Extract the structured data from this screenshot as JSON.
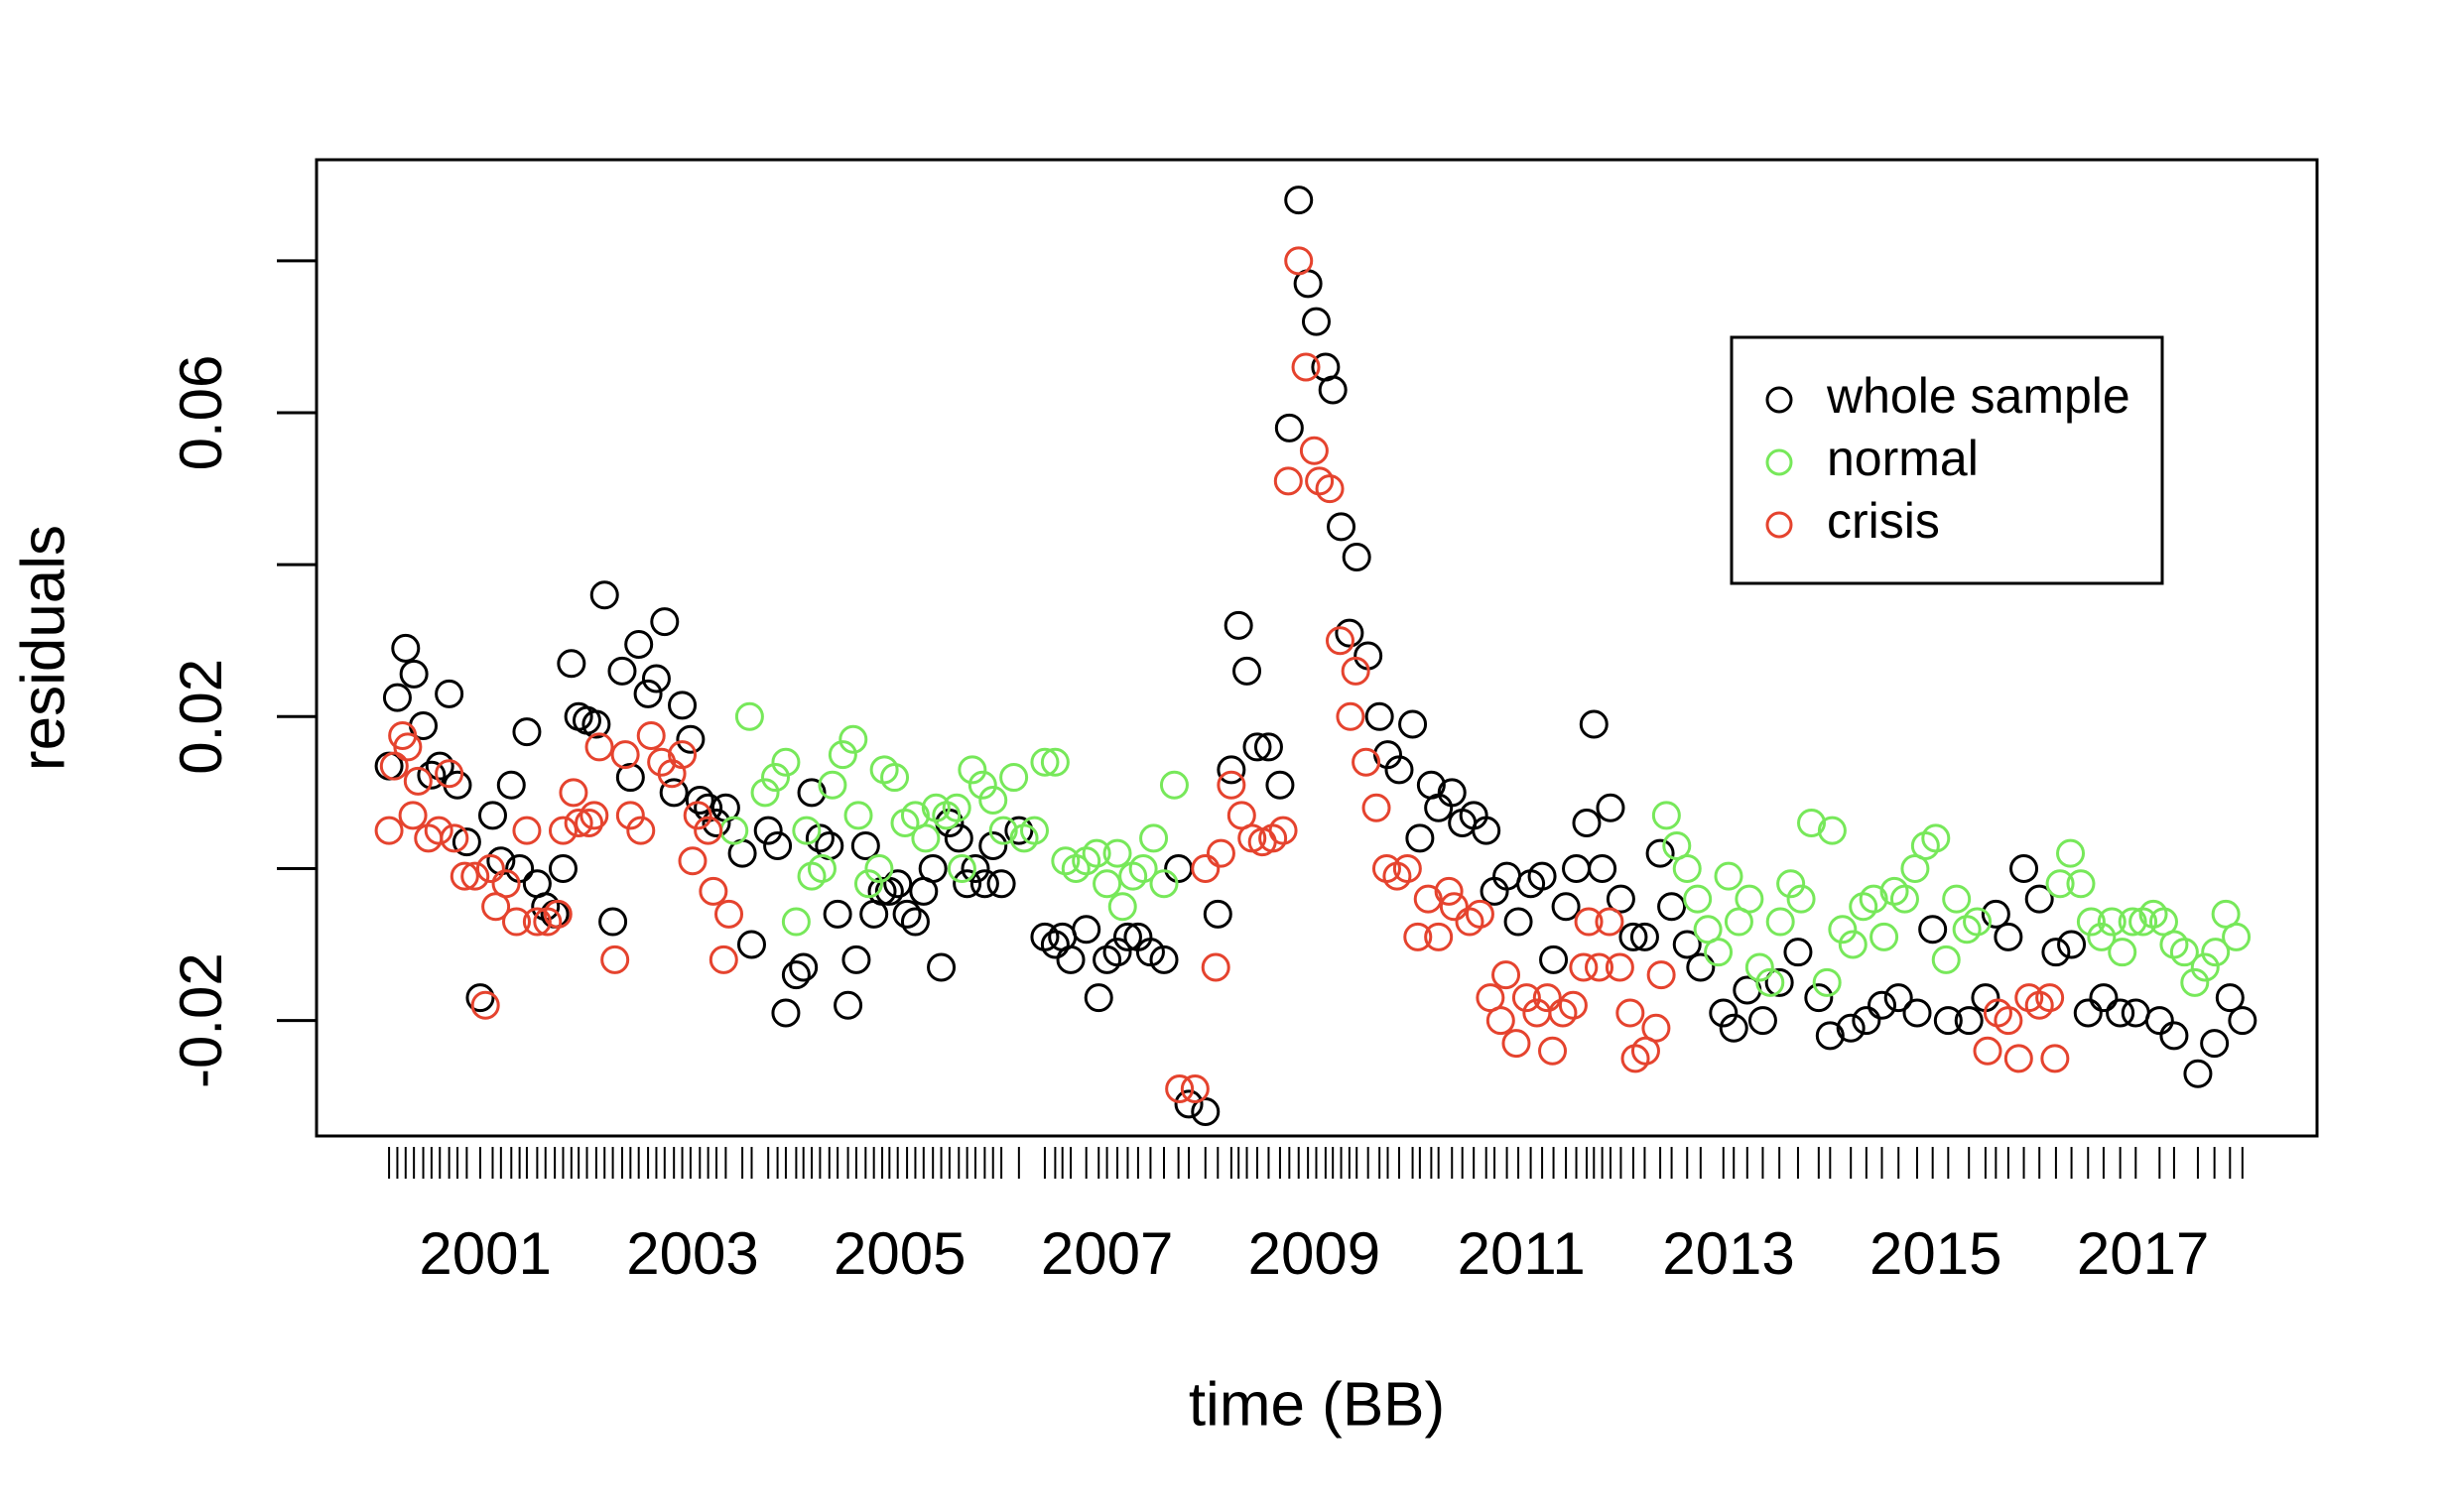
{
  "chart_data": {
    "type": "scatter",
    "x_label": "time (BB)",
    "y_label": "residuals",
    "xlim": [
      1999.37,
      2018.68
    ],
    "ylim": [
      -0.0352,
      0.0933
    ],
    "xticks": [
      2001,
      2003,
      2005,
      2007,
      2009,
      2011,
      2013,
      2015,
      2017
    ],
    "yticks": [
      -0.02,
      0.02,
      0.06
    ],
    "yticks_unlabeled": [
      0,
      0.04,
      0.08
    ],
    "rug": true,
    "grid": false,
    "legend": "topright",
    "series": [
      {
        "name": "whole sample",
        "color": "#000000",
        "x": [
          2000.07,
          2000.15,
          2000.23,
          2000.31,
          2000.4,
          2000.48,
          2000.56,
          2000.65,
          2000.73,
          2000.82,
          2000.95,
          2001.07,
          2001.15,
          2001.25,
          2001.33,
          2001.4,
          2001.5,
          2001.58,
          2001.67,
          2001.75,
          2001.83,
          2001.9,
          2001.98,
          2002.07,
          2002.15,
          2002.23,
          2002.32,
          2002.4,
          2002.48,
          2002.57,
          2002.65,
          2002.73,
          2002.82,
          2002.9,
          2002.98,
          2003.07,
          2003.15,
          2003.23,
          2003.32,
          2003.48,
          2003.57,
          2003.73,
          2003.82,
          2003.9,
          2004.0,
          2004.07,
          2004.15,
          2004.23,
          2004.32,
          2004.4,
          2004.5,
          2004.58,
          2004.67,
          2004.75,
          2004.83,
          2004.9,
          2004.98,
          2005.07,
          2005.15,
          2005.23,
          2005.32,
          2005.4,
          2005.48,
          2005.57,
          2005.65,
          2005.73,
          2005.82,
          2005.9,
          2005.98,
          2006.15,
          2006.4,
          2006.5,
          2006.57,
          2006.65,
          2006.8,
          2006.92,
          2007.0,
          2007.1,
          2007.2,
          2007.3,
          2007.42,
          2007.55,
          2007.69,
          2007.79,
          2007.95,
          2008.07,
          2008.2,
          2008.27,
          2008.35,
          2008.45,
          2008.56,
          2008.67,
          2008.76,
          2008.85,
          2008.94,
          2009.02,
          2009.11,
          2009.18,
          2009.26,
          2009.34,
          2009.41,
          2009.52,
          2009.63,
          2009.71,
          2009.82,
          2009.95,
          2010.02,
          2010.13,
          2010.2,
          2010.33,
          2010.43,
          2010.54,
          2010.66,
          2010.74,
          2010.86,
          2010.97,
          2011.09,
          2011.2,
          2011.31,
          2011.43,
          2011.53,
          2011.63,
          2011.7,
          2011.78,
          2011.86,
          2011.96,
          2012.08,
          2012.19,
          2012.34,
          2012.45,
          2012.6,
          2012.73,
          2012.95,
          2013.05,
          2013.18,
          2013.33,
          2013.49,
          2013.67,
          2013.87,
          2013.98,
          2014.18,
          2014.33,
          2014.48,
          2014.64,
          2014.82,
          2014.97,
          2015.12,
          2015.32,
          2015.48,
          2015.58,
          2015.7,
          2015.85,
          2016.0,
          2016.16,
          2016.31,
          2016.47,
          2016.62,
          2016.78,
          2016.93,
          2017.16,
          2017.3,
          2017.53,
          2017.69,
          2017.84,
          2017.96
        ],
        "values": [
          0.0135,
          0.0225,
          0.029,
          0.0256,
          0.0188,
          0.0123,
          0.0135,
          0.023,
          0.011,
          0.0035,
          -0.017,
          0.007,
          0.001,
          0.011,
          0.0,
          0.018,
          -0.002,
          -0.005,
          -0.006,
          0.0,
          0.027,
          0.02,
          0.0195,
          0.019,
          0.036,
          -0.007,
          0.026,
          0.012,
          0.0295,
          0.023,
          0.025,
          0.0325,
          0.01,
          0.0215,
          0.017,
          0.009,
          0.008,
          0.006,
          0.008,
          0.002,
          -0.01,
          0.005,
          0.003,
          -0.019,
          -0.014,
          -0.013,
          0.01,
          0.004,
          0.003,
          -0.006,
          -0.018,
          -0.012,
          0.003,
          -0.006,
          -0.003,
          -0.003,
          -0.002,
          -0.006,
          -0.007,
          -0.003,
          0.0,
          -0.013,
          0.006,
          0.004,
          -0.002,
          0.0,
          -0.002,
          0.003,
          -0.002,
          0.005,
          -0.009,
          -0.01,
          -0.009,
          -0.012,
          -0.008,
          -0.017,
          -0.012,
          -0.011,
          -0.009,
          -0.009,
          -0.011,
          -0.012,
          0.0,
          -0.031,
          -0.032,
          -0.006,
          0.013,
          0.032,
          0.026,
          0.016,
          0.016,
          0.011,
          0.058,
          0.088,
          0.077,
          0.072,
          0.066,
          0.063,
          0.045,
          0.031,
          0.041,
          0.028,
          0.02,
          0.015,
          0.013,
          0.019,
          0.004,
          0.011,
          0.008,
          0.01,
          0.006,
          0.007,
          0.005,
          -0.003,
          -0.001,
          -0.007,
          -0.002,
          -0.001,
          -0.012,
          -0.005,
          0.0,
          0.006,
          0.019,
          0.0,
          0.008,
          -0.004,
          -0.009,
          -0.009,
          0.002,
          -0.005,
          -0.01,
          -0.013,
          -0.019,
          -0.021,
          -0.016,
          -0.02,
          -0.015,
          -0.011,
          -0.017,
          -0.022,
          -0.021,
          -0.02,
          -0.018,
          -0.017,
          -0.019,
          -0.008,
          -0.02,
          -0.02,
          -0.017,
          -0.006,
          -0.009,
          0.0,
          -0.004,
          -0.011,
          -0.01,
          -0.019,
          -0.017,
          -0.019,
          -0.019,
          -0.02,
          -0.022,
          -0.027,
          -0.023,
          -0.017,
          -0.02
        ]
      },
      {
        "name": "normal",
        "color": "#77e85a",
        "x": [
          2003.4,
          2003.55,
          2003.7,
          2003.8,
          2003.9,
          2004.0,
          2004.1,
          2004.15,
          2004.25,
          2004.35,
          2004.45,
          2004.55,
          2004.6,
          2004.7,
          2004.8,
          2004.85,
          2004.95,
          2005.05,
          2005.15,
          2005.25,
          2005.35,
          2005.45,
          2005.55,
          2005.6,
          2005.7,
          2005.8,
          2005.9,
          2006.0,
          2006.1,
          2006.2,
          2006.3,
          2006.4,
          2006.5,
          2006.6,
          2006.7,
          2006.8,
          2006.9,
          2007.0,
          2007.1,
          2007.15,
          2007.25,
          2007.35,
          2007.45,
          2007.55,
          2007.65,
          2012.4,
          2012.5,
          2012.6,
          2012.7,
          2012.8,
          2012.9,
          2013.0,
          2013.1,
          2013.2,
          2013.3,
          2013.4,
          2013.5,
          2013.6,
          2013.7,
          2013.8,
          2013.95,
          2014.0,
          2014.1,
          2014.2,
          2014.3,
          2014.4,
          2014.5,
          2014.6,
          2014.7,
          2014.8,
          2014.9,
          2015.0,
          2015.1,
          2015.2,
          2015.3,
          2015.4,
          2016.2,
          2016.3,
          2016.4,
          2016.5,
          2016.6,
          2016.7,
          2016.8,
          2016.9,
          2017.0,
          2017.1,
          2017.2,
          2017.3,
          2017.4,
          2017.5,
          2017.6,
          2017.7,
          2017.8,
          2017.9
        ],
        "values": [
          0.005,
          0.02,
          0.01,
          0.012,
          0.014,
          -0.007,
          0.005,
          -0.001,
          0.0,
          0.011,
          0.015,
          0.017,
          0.007,
          -0.002,
          0.0,
          0.013,
          0.012,
          0.006,
          0.007,
          0.004,
          0.008,
          0.007,
          0.008,
          0.0,
          0.013,
          0.011,
          0.009,
          0.005,
          0.012,
          0.004,
          0.005,
          0.014,
          0.014,
          0.001,
          0.0,
          0.001,
          0.002,
          -0.002,
          0.002,
          -0.005,
          -0.001,
          0.0,
          0.004,
          -0.002,
          0.011,
          0.007,
          0.003,
          0.0,
          -0.004,
          -0.008,
          -0.011,
          -0.001,
          -0.007,
          -0.004,
          -0.013,
          -0.015,
          -0.007,
          -0.002,
          -0.004,
          0.006,
          -0.015,
          0.005,
          -0.008,
          -0.01,
          -0.005,
          -0.004,
          -0.009,
          -0.003,
          -0.004,
          0.0,
          0.003,
          0.004,
          -0.012,
          -0.004,
          -0.008,
          -0.007,
          -0.002,
          0.002,
          -0.002,
          -0.007,
          -0.009,
          -0.007,
          -0.011,
          -0.007,
          -0.007,
          -0.006,
          -0.007,
          -0.01,
          -0.011,
          -0.015,
          -0.013,
          -0.011,
          -0.006,
          -0.009
        ]
      },
      {
        "name": "crisis",
        "color": "#e5432e",
        "x": [
          2000.07,
          2000.12,
          2000.2,
          2000.25,
          2000.3,
          2000.35,
          2000.45,
          2000.55,
          2000.65,
          2000.7,
          2000.8,
          2000.9,
          2001.0,
          2001.05,
          2001.1,
          2001.2,
          2001.3,
          2001.4,
          2001.5,
          2001.6,
          2001.7,
          2001.75,
          2001.85,
          2001.9,
          2002.0,
          2002.05,
          2002.1,
          2002.25,
          2002.35,
          2002.4,
          2002.5,
          2002.6,
          2002.7,
          2002.8,
          2002.9,
          2003.0,
          2003.05,
          2003.15,
          2003.2,
          2003.3,
          2003.35,
          2007.7,
          2007.85,
          2007.95,
          2008.05,
          2008.1,
          2008.2,
          2008.3,
          2008.4,
          2008.5,
          2008.6,
          2008.7,
          2008.75,
          2008.85,
          2008.92,
          2009.0,
          2009.05,
          2009.15,
          2009.25,
          2009.35,
          2009.4,
          2009.5,
          2009.6,
          2009.7,
          2009.8,
          2009.9,
          2010.0,
          2010.1,
          2010.2,
          2010.3,
          2010.35,
          2010.5,
          2010.6,
          2010.7,
          2010.8,
          2010.85,
          2010.95,
          2011.05,
          2011.15,
          2011.25,
          2011.3,
          2011.4,
          2011.5,
          2011.6,
          2011.65,
          2011.75,
          2011.85,
          2011.95,
          2012.05,
          2012.1,
          2012.2,
          2012.3,
          2012.35,
          2015.5,
          2015.6,
          2015.7,
          2015.8,
          2015.9,
          2016.0,
          2016.1,
          2016.15
        ],
        "values": [
          0.005,
          0.0135,
          0.0175,
          0.016,
          0.007,
          0.0115,
          0.004,
          0.005,
          0.0125,
          0.004,
          -0.001,
          -0.001,
          -0.018,
          0.0,
          -0.005,
          -0.002,
          -0.007,
          0.005,
          -0.007,
          -0.007,
          -0.006,
          0.005,
          0.01,
          0.006,
          0.006,
          0.007,
          0.016,
          -0.012,
          0.015,
          0.007,
          0.005,
          0.0175,
          0.014,
          0.0125,
          0.015,
          0.001,
          0.007,
          0.005,
          -0.003,
          -0.012,
          -0.006,
          -0.029,
          -0.029,
          0.0,
          -0.013,
          0.002,
          0.011,
          0.007,
          0.004,
          0.0035,
          0.004,
          0.005,
          0.051,
          0.08,
          0.066,
          0.055,
          0.051,
          0.05,
          0.03,
          0.02,
          0.026,
          0.014,
          0.008,
          0.0,
          -0.001,
          0.0,
          -0.009,
          -0.004,
          -0.009,
          -0.003,
          -0.005,
          -0.007,
          -0.006,
          -0.017,
          -0.02,
          -0.014,
          -0.023,
          -0.017,
          -0.019,
          -0.017,
          -0.024,
          -0.019,
          -0.018,
          -0.013,
          -0.007,
          -0.013,
          -0.007,
          -0.013,
          -0.019,
          -0.025,
          -0.024,
          -0.021,
          -0.014,
          -0.024,
          -0.019,
          -0.02,
          -0.025,
          -0.017,
          -0.018,
          -0.017,
          -0.025
        ]
      }
    ]
  }
}
